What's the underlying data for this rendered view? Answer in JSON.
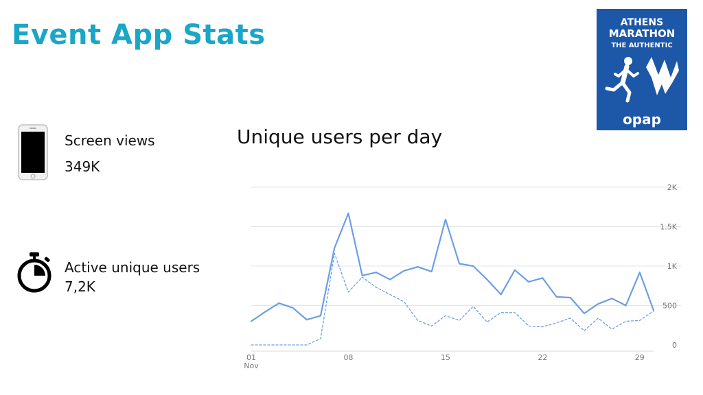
{
  "header": {
    "title": "Event App Stats"
  },
  "colors": {
    "accent": "#1aa6c7",
    "logo_bg": "#1d57a8",
    "line": "#6a9ee6",
    "grid": "#e6e6e6",
    "axis_text": "#777777"
  },
  "logo": {
    "line1": "ATHENS",
    "line2": "MARATHON",
    "line3": "THE AUTHENTIC",
    "brand": "opap"
  },
  "stats": {
    "screen_views": {
      "icon": "smartphone-icon",
      "label": "Screen views",
      "value": "349K"
    },
    "active_users": {
      "icon": "stopwatch-icon",
      "label": "Active unique users",
      "value": "7,2K"
    }
  },
  "chart_data": {
    "type": "line",
    "title": "Unique users per day",
    "xlabel": "",
    "ylabel": "",
    "x": [
      1,
      2,
      3,
      4,
      5,
      6,
      7,
      8,
      9,
      10,
      11,
      12,
      13,
      14,
      15,
      16,
      17,
      18,
      19,
      20,
      21,
      22,
      23,
      24,
      25,
      26,
      27,
      28,
      29,
      30
    ],
    "x_ticks": [
      {
        "day": 1,
        "label": "01",
        "sublabel": "Nov"
      },
      {
        "day": 8,
        "label": "08",
        "sublabel": ""
      },
      {
        "day": 15,
        "label": "15",
        "sublabel": ""
      },
      {
        "day": 22,
        "label": "22",
        "sublabel": ""
      },
      {
        "day": 29,
        "label": "29",
        "sublabel": ""
      }
    ],
    "y_ticks": [
      {
        "value": 0,
        "label": "0"
      },
      {
        "value": 500,
        "label": "500"
      },
      {
        "value": 1000,
        "label": "1K"
      },
      {
        "value": 1500,
        "label": "1.5K"
      },
      {
        "value": 2000,
        "label": "2K"
      }
    ],
    "ylim": [
      0,
      2000
    ],
    "y_axis_side": "right",
    "grid": true,
    "series": [
      {
        "style": "solid",
        "values": [
          300,
          420,
          530,
          470,
          320,
          370,
          1230,
          1670,
          880,
          920,
          830,
          940,
          990,
          930,
          1590,
          1030,
          1000,
          830,
          640,
          950,
          800,
          850,
          610,
          600,
          400,
          520,
          590,
          500,
          920,
          440
        ]
      },
      {
        "style": "dashed",
        "values": [
          0,
          0,
          0,
          0,
          0,
          80,
          1160,
          670,
          860,
          730,
          640,
          550,
          310,
          240,
          370,
          310,
          490,
          290,
          410,
          410,
          240,
          230,
          280,
          340,
          180,
          340,
          200,
          300,
          310,
          430
        ]
      }
    ]
  }
}
